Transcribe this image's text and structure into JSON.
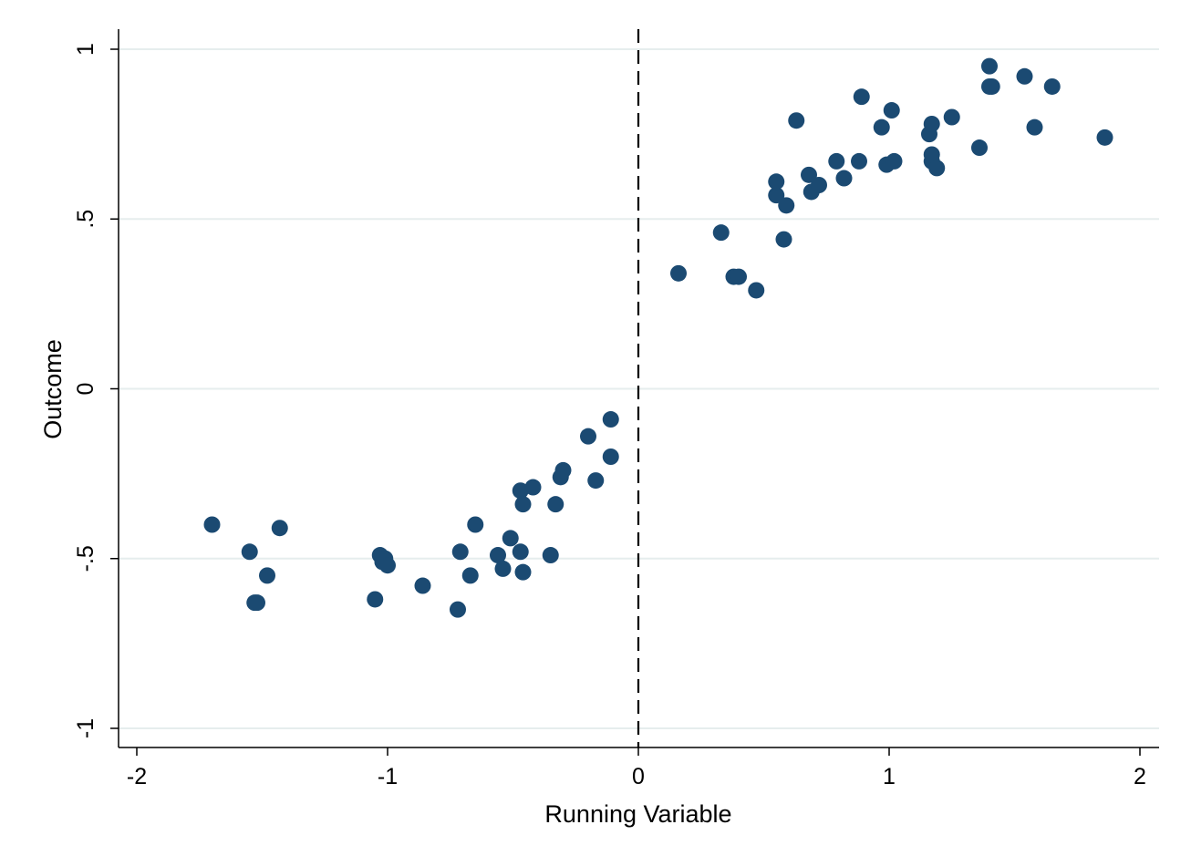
{
  "chart_data": {
    "type": "scatter",
    "title": "",
    "xlabel": "Running Variable",
    "ylabel": "Outcome",
    "xlim": [
      -2,
      2
    ],
    "ylim": [
      -1,
      1
    ],
    "x_ticks": [
      -2,
      -1,
      0,
      1,
      2
    ],
    "x_tick_labels": [
      "-2",
      "-1",
      "0",
      "1",
      "2"
    ],
    "y_ticks": [
      -1,
      -0.5,
      0,
      0.5,
      1
    ],
    "y_tick_labels": [
      "-1",
      "-.5",
      "0",
      ".5",
      "1"
    ],
    "grid": "horizontal",
    "cutoff_line": {
      "x": 0,
      "style": "dashed"
    },
    "legend": "none",
    "colors": {
      "points": "#1b4a72",
      "grid": "#e6eded",
      "axis": "#000000"
    },
    "points": [
      {
        "x": -1.7,
        "y": -0.4
      },
      {
        "x": -1.55,
        "y": -0.48
      },
      {
        "x": -1.43,
        "y": -0.41
      },
      {
        "x": -1.48,
        "y": -0.55
      },
      {
        "x": -1.53,
        "y": -0.63
      },
      {
        "x": -1.52,
        "y": -0.63
      },
      {
        "x": -1.05,
        "y": -0.62
      },
      {
        "x": -1.03,
        "y": -0.49
      },
      {
        "x": -1.01,
        "y": -0.5
      },
      {
        "x": -1.02,
        "y": -0.51
      },
      {
        "x": -1.0,
        "y": -0.52
      },
      {
        "x": -0.86,
        "y": -0.58
      },
      {
        "x": -0.72,
        "y": -0.65
      },
      {
        "x": -0.71,
        "y": -0.48
      },
      {
        "x": -0.67,
        "y": -0.55
      },
      {
        "x": -0.65,
        "y": -0.4
      },
      {
        "x": -0.56,
        "y": -0.49
      },
      {
        "x": -0.54,
        "y": -0.53
      },
      {
        "x": -0.51,
        "y": -0.44
      },
      {
        "x": -0.47,
        "y": -0.48
      },
      {
        "x": -0.46,
        "y": -0.54
      },
      {
        "x": -0.47,
        "y": -0.3
      },
      {
        "x": -0.46,
        "y": -0.34
      },
      {
        "x": -0.42,
        "y": -0.29
      },
      {
        "x": -0.35,
        "y": -0.49
      },
      {
        "x": -0.33,
        "y": -0.34
      },
      {
        "x": -0.31,
        "y": -0.26
      },
      {
        "x": -0.3,
        "y": -0.24
      },
      {
        "x": -0.2,
        "y": -0.14
      },
      {
        "x": -0.17,
        "y": -0.27
      },
      {
        "x": -0.11,
        "y": -0.2
      },
      {
        "x": -0.11,
        "y": -0.09
      },
      {
        "x": 0.16,
        "y": 0.34
      },
      {
        "x": 0.33,
        "y": 0.46
      },
      {
        "x": 0.38,
        "y": 0.33
      },
      {
        "x": 0.4,
        "y": 0.33
      },
      {
        "x": 0.47,
        "y": 0.29
      },
      {
        "x": 0.55,
        "y": 0.57
      },
      {
        "x": 0.55,
        "y": 0.61
      },
      {
        "x": 0.58,
        "y": 0.44
      },
      {
        "x": 0.59,
        "y": 0.54
      },
      {
        "x": 0.63,
        "y": 0.79
      },
      {
        "x": 0.68,
        "y": 0.63
      },
      {
        "x": 0.69,
        "y": 0.58
      },
      {
        "x": 0.72,
        "y": 0.6
      },
      {
        "x": 0.79,
        "y": 0.67
      },
      {
        "x": 0.82,
        "y": 0.62
      },
      {
        "x": 0.88,
        "y": 0.67
      },
      {
        "x": 0.89,
        "y": 0.86
      },
      {
        "x": 0.97,
        "y": 0.77
      },
      {
        "x": 0.99,
        "y": 0.66
      },
      {
        "x": 1.01,
        "y": 0.82
      },
      {
        "x": 1.02,
        "y": 0.67
      },
      {
        "x": 1.16,
        "y": 0.75
      },
      {
        "x": 1.17,
        "y": 0.78
      },
      {
        "x": 1.17,
        "y": 0.67
      },
      {
        "x": 1.17,
        "y": 0.69
      },
      {
        "x": 1.19,
        "y": 0.65
      },
      {
        "x": 1.25,
        "y": 0.8
      },
      {
        "x": 1.36,
        "y": 0.71
      },
      {
        "x": 1.4,
        "y": 0.95
      },
      {
        "x": 1.4,
        "y": 0.89
      },
      {
        "x": 1.41,
        "y": 0.89
      },
      {
        "x": 1.54,
        "y": 0.92
      },
      {
        "x": 1.58,
        "y": 0.77
      },
      {
        "x": 1.65,
        "y": 0.89
      },
      {
        "x": 1.86,
        "y": 0.74
      }
    ]
  }
}
